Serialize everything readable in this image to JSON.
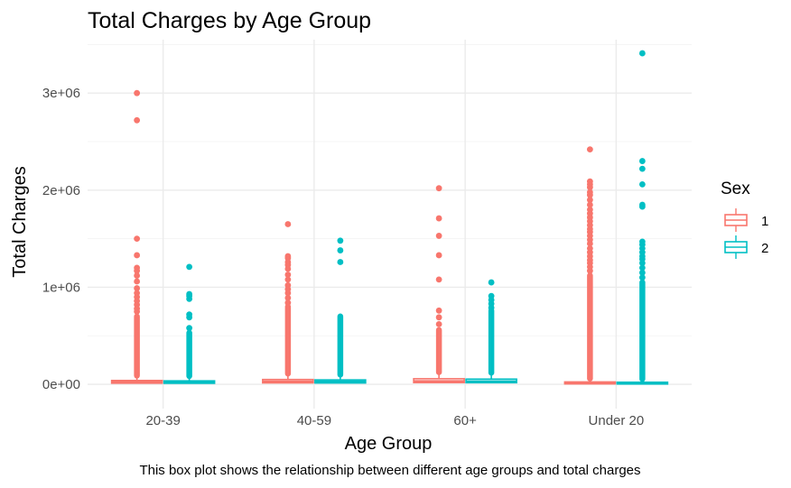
{
  "chart_data": {
    "type": "box",
    "title": "Total Charges by Age Group",
    "xlabel": "Age Group",
    "ylabel": "Total Charges",
    "caption": "This box plot shows the relationship between different age groups and total charges",
    "categories": [
      "20-39",
      "40-59",
      "60+",
      "Under 20"
    ],
    "ylim": [
      -250000,
      3550000
    ],
    "y_ticks": [
      0,
      1000000,
      2000000,
      3000000
    ],
    "y_tick_labels": [
      "0e+00",
      "1e+06",
      "2e+06",
      "3e+06"
    ],
    "grid": true,
    "legend": {
      "title": "Sex",
      "position": "right",
      "items": [
        {
          "label": "1",
          "color": "#F8766D"
        },
        {
          "label": "2",
          "color": "#00BFC4"
        }
      ]
    },
    "series": [
      {
        "name": "1",
        "color": "#F8766D",
        "groups": [
          {
            "category": "20-39",
            "q1": 12000,
            "median": 22000,
            "q3": 40000,
            "whisker_high": 90000,
            "dense_to": 700000,
            "outliers": [
              3000000,
              2720000,
              1500000,
              1330000,
              1200000,
              1170000,
              1120000,
              1060000,
              990000,
              940000,
              900000,
              860000,
              820000,
              780000,
              750000
            ]
          },
          {
            "category": "40-59",
            "q1": 15000,
            "median": 28000,
            "q3": 50000,
            "whisker_high": 110000,
            "dense_to": 800000,
            "outliers": [
              1650000,
              1320000,
              1300000,
              1260000,
              1230000,
              1190000,
              1130000,
              1080000,
              1020000,
              980000,
              940000,
              890000,
              840000
            ]
          },
          {
            "category": "60+",
            "q1": 18000,
            "median": 32000,
            "q3": 58000,
            "whisker_high": 125000,
            "dense_to": 560000,
            "outliers": [
              2020000,
              1710000,
              1530000,
              1330000,
              1080000,
              760000,
              690000,
              620000
            ]
          },
          {
            "category": "Under 20",
            "q1": 5000,
            "median": 12000,
            "q3": 25000,
            "whisker_high": 60000,
            "dense_to": 1120000,
            "outliers": [
              2420000,
              2090000,
              2060000,
              2030000,
              1980000,
              1950000,
              1900000,
              1850000,
              1800000,
              1760000,
              1720000,
              1680000,
              1640000,
              1600000,
              1570000,
              1530000,
              1490000,
              1450000,
              1400000,
              1360000,
              1320000,
              1280000,
              1250000,
              1210000,
              1170000
            ]
          }
        ]
      },
      {
        "name": "2",
        "color": "#00BFC4",
        "groups": [
          {
            "category": "20-39",
            "q1": 11000,
            "median": 20000,
            "q3": 36000,
            "whisker_high": 85000,
            "dense_to": 530000,
            "outliers": [
              1210000,
              930000,
              910000,
              880000,
              720000,
              690000,
              580000
            ]
          },
          {
            "category": "40-59",
            "q1": 14000,
            "median": 26000,
            "q3": 46000,
            "whisker_high": 100000,
            "dense_to": 700000,
            "outliers": [
              1480000,
              1380000,
              1260000
            ]
          },
          {
            "category": "60+",
            "q1": 17000,
            "median": 30000,
            "q3": 54000,
            "whisker_high": 120000,
            "dense_to": 760000,
            "outliers": [
              1050000,
              910000,
              870000,
              830000,
              790000
            ]
          },
          {
            "category": "Under 20",
            "q1": 4000,
            "median": 10000,
            "q3": 22000,
            "whisker_high": 55000,
            "dense_to": 1050000,
            "outliers": [
              3410000,
              2300000,
              2220000,
              2060000,
              1850000,
              1830000,
              1470000,
              1440000,
              1400000,
              1360000,
              1320000,
              1290000,
              1250000,
              1200000,
              1150000,
              1100000
            ]
          }
        ]
      }
    ]
  }
}
